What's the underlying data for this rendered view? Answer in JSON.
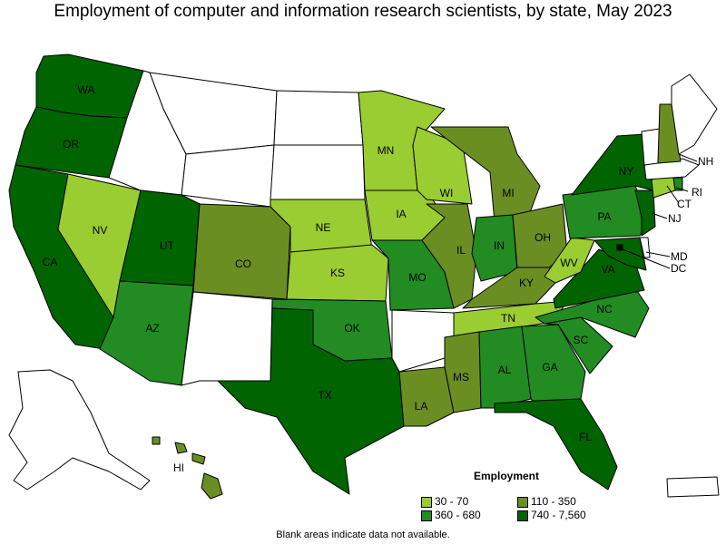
{
  "title": "Employment of computer and information research scientists, by state, May 2023",
  "legend": {
    "title": "Employment",
    "items": [
      {
        "label": "30 - 70",
        "color": "#9acd32"
      },
      {
        "label": "110 - 350",
        "color": "#6b8e23"
      },
      {
        "label": "360 - 680",
        "color": "#228b22"
      },
      {
        "label": "740 - 7,560",
        "color": "#006400"
      }
    ]
  },
  "note": "Blank areas indicate data not available.",
  "states": {
    "WA": "740 - 7,560",
    "OR": "740 - 7,560",
    "CA": "740 - 7,560",
    "NV": "30 - 70",
    "UT": "740 - 7,560",
    "AZ": "360 - 680",
    "CO": "110 - 350",
    "NE": "30 - 70",
    "KS": "30 - 70",
    "OK": "360 - 680",
    "TX": "740 - 7,560",
    "MN": "30 - 70",
    "IA": "30 - 70",
    "MO": "360 - 680",
    "LA": "110 - 350",
    "WI": "30 - 70",
    "IL": "110 - 350",
    "MI": "110 - 350",
    "IN": "360 - 680",
    "OH": "110 - 350",
    "KY": "110 - 350",
    "TN": "30 - 70",
    "MS": "110 - 350",
    "AL": "360 - 680",
    "GA": "360 - 680",
    "FL": "740 - 7,560",
    "SC": "360 - 680",
    "NC": "360 - 680",
    "VA": "740 - 7,560",
    "WV": "30 - 70",
    "PA": "360 - 680",
    "NY": "740 - 7,560",
    "NJ": "740 - 7,560",
    "MD": "740 - 7,560",
    "DC": "740 - 7,560",
    "NH": "110 - 350",
    "CT": "30 - 70",
    "RI": "360 - 680",
    "HI": "110 - 350"
  }
}
